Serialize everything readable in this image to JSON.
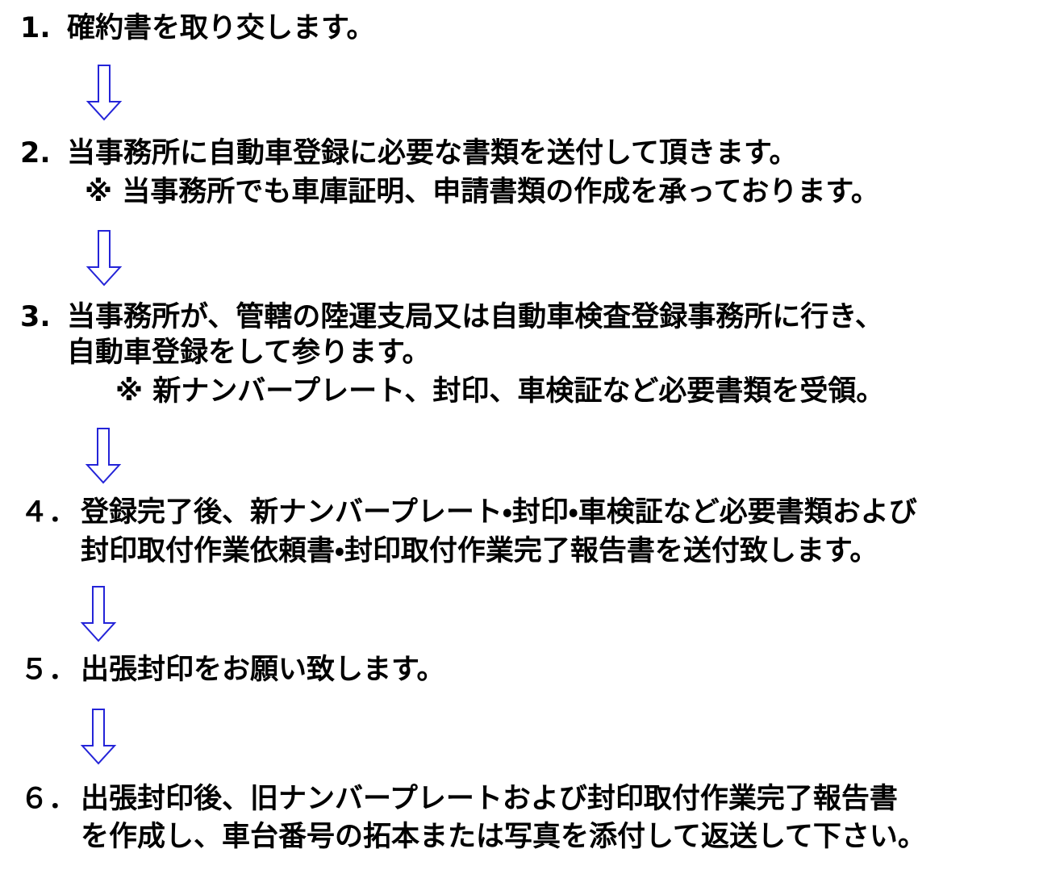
{
  "steps": [
    {
      "number": "1.",
      "lines": [
        "確約書を取り交します。"
      ]
    },
    {
      "number": "2.",
      "lines": [
        "当事務所に自動車登録に必要な書類を送付して頂きます。"
      ],
      "note": "※ 当事務所でも車庫証明、申請書類の作成を承っております。"
    },
    {
      "number": "3.",
      "lines": [
        "当事務所が、管轄の陸運支局又は自動車検査登録事務所に行き、",
        "自動車登録をして参ります。"
      ],
      "note": "※ 新ナンバープレート、封印、車検証など必要書類を受領。"
    },
    {
      "number": "４．",
      "lines": [
        "登録完了後、新ナンバープレート・封印・車検証など必要書類および",
        "封印取付作業依頼書・封印取付作業完了報告書を送付致します。"
      ]
    },
    {
      "number": "５．",
      "lines": [
        "出張封印をお願い致します。"
      ]
    },
    {
      "number": "６．",
      "lines": [
        "出張封印後、旧ナンバープレートおよび封印取付作業完了報告書",
        "を作成し、車台番号の拓本または写真を添付して返送して下さい。"
      ]
    }
  ]
}
